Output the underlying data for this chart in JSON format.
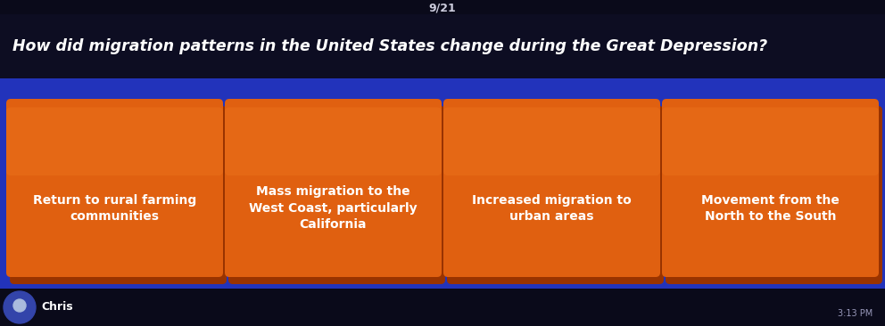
{
  "slide_number": "9/21",
  "question": "How did migration patterns in the United States change during the Great Depression?",
  "answers": [
    "Return to rural farming\ncommunities",
    "Mass migration to the\nWest Coast, particularly\nCalifornia",
    "Increased migration to\nurban areas",
    "Movement from the\nNorth to the South"
  ],
  "bg_color": "#1a1acc",
  "top_bar_color": "#0a0a1a",
  "question_bar_color": "#111133",
  "card_color": "#e06010",
  "card_shadow_color": "#993300",
  "card_border_color": "#cc5500",
  "card_text_color": "#ffffff",
  "question_color": "#ffffff",
  "slide_num_color": "#ccccdd",
  "footer_bg": "#0a0a1a",
  "footer_text": "Chris",
  "footer_time": "3:13 PM"
}
